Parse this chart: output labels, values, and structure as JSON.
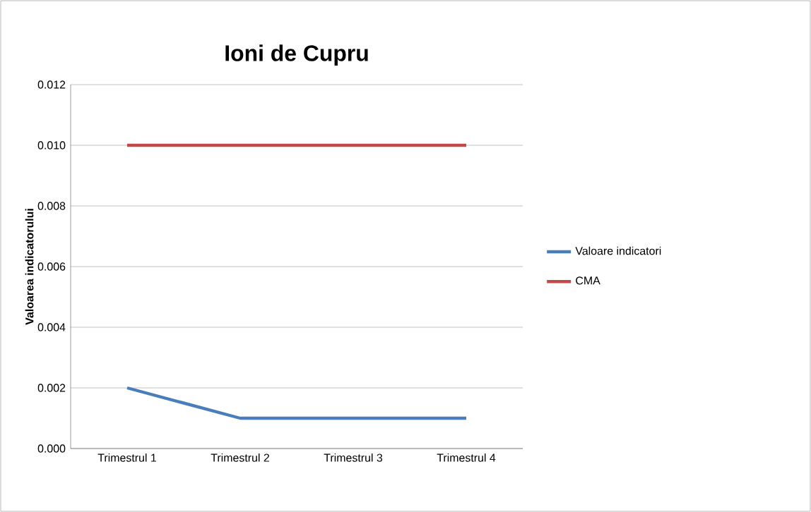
{
  "chart_data": {
    "type": "line",
    "title": "Ioni de Cupru",
    "ylabel": "Valoarea indicatorului",
    "categories": [
      "Trimestrul 1",
      "Trimestrul 2",
      "Trimestrul 3",
      "Trimestrul 4"
    ],
    "series": [
      {
        "name": "Valoare indicatori",
        "color": "#4a7ebb",
        "values": [
          0.002,
          0.001,
          0.001,
          0.001
        ]
      },
      {
        "name": "CMA",
        "color": "#be4b48",
        "values": [
          0.01,
          0.01,
          0.01,
          0.01
        ]
      }
    ],
    "ylim": [
      0,
      0.012
    ],
    "yticks": [
      {
        "value": 0,
        "label": "0.000"
      },
      {
        "value": 0.002,
        "label": "0.002"
      },
      {
        "value": 0.004,
        "label": "0.004"
      },
      {
        "value": 0.006,
        "label": "0.006"
      },
      {
        "value": 0.008,
        "label": "0.008"
      },
      {
        "value": 0.01,
        "label": "0.010"
      },
      {
        "value": 0.012,
        "label": "0.012"
      }
    ],
    "grid": "y",
    "legend": "right"
  }
}
